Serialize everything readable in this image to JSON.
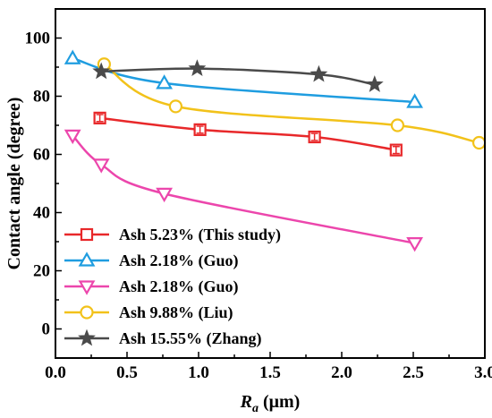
{
  "chart_data": {
    "type": "line",
    "xlabel": {
      "main": "R",
      "sub": "a",
      "unit": " (μm)"
    },
    "ylabel": "Contact angle (degree)",
    "xlim": [
      0.0,
      3.0
    ],
    "ylim": [
      -10,
      110
    ],
    "xticks": [
      0.0,
      0.5,
      1.0,
      1.5,
      2.0,
      2.5,
      3.0
    ],
    "xtick_labels": [
      "0.0",
      "0.5",
      "1.0",
      "1.5",
      "2.0",
      "2.5",
      "3.0"
    ],
    "yticks": [
      0,
      20,
      40,
      60,
      80,
      100
    ],
    "ytick_labels": [
      "0",
      "20",
      "40",
      "60",
      "80",
      "100"
    ],
    "grid": false,
    "legend_position": "bottom-left",
    "series": [
      {
        "name": "Ash 5.23% (This study)",
        "color": "#e8282a",
        "marker": "square",
        "x": [
          0.31,
          1.01,
          1.81,
          2.38
        ],
        "y": [
          72.5,
          68.5,
          66.0,
          61.5
        ],
        "error": [
          1.2,
          1.2,
          1.2,
          1.2
        ]
      },
      {
        "name": "Ash 2.18% (Guo)",
        "color": "#1f9de0",
        "marker": "triangle-up",
        "x": [
          0.12,
          0.76,
          2.51
        ],
        "y": [
          93.0,
          84.5,
          78.0
        ]
      },
      {
        "name": "Ash 2.18% (Guo)",
        "color": "#ec46ac",
        "marker": "triangle-down",
        "x": [
          0.12,
          0.32,
          0.76,
          2.51
        ],
        "y": [
          66.5,
          56.5,
          46.5,
          29.5
        ]
      },
      {
        "name": "Ash 9.88% (Liu)",
        "color": "#f2c21a",
        "marker": "circle",
        "x": [
          0.34,
          0.84,
          2.39,
          2.96
        ],
        "y": [
          91.0,
          76.5,
          70.0,
          64.0
        ]
      },
      {
        "name": "Ash 15.55% (Zhang)",
        "color": "#4a4a4a",
        "marker": "star",
        "x": [
          0.32,
          0.99,
          1.84,
          2.23
        ],
        "y": [
          88.5,
          89.5,
          87.5,
          84.0
        ]
      }
    ]
  }
}
